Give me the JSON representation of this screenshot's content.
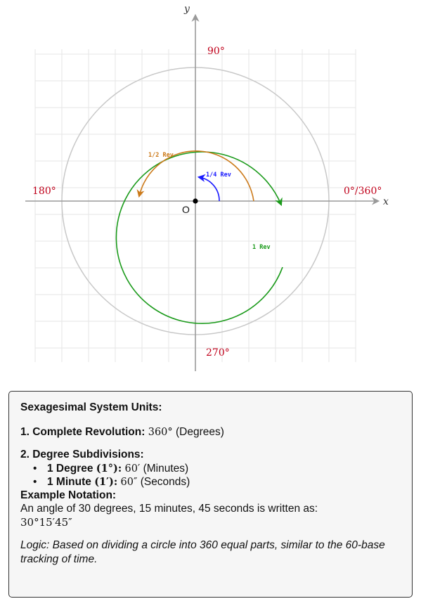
{
  "diagram": {
    "axis_x_label": "x",
    "axis_y_label": "y",
    "origin_label": "O",
    "angle_labels": {
      "deg0": "0°/360°",
      "deg90": "90°",
      "deg180": "180°",
      "deg270": "270°"
    },
    "arc_labels": {
      "quarter": "1/4 Rev",
      "half": "1/2 Rev",
      "full": "1 Rev"
    },
    "colors": {
      "degree_label": "#c0001a",
      "quarter_arc": "#1a1aff",
      "half_arc": "#cc7a1a",
      "full_arc": "#1a9a1a",
      "outer_circle": "#c8c8c8",
      "grid": "#e6e6e6",
      "axes": "#9a9a9a"
    }
  },
  "info": {
    "title": "Sexagesimal System Units:",
    "item1_label": "1. Complete Revolution:",
    "item1_value": "360°",
    "item1_unit": "(Degrees)",
    "item2_label": "2. Degree Subdivisions:",
    "bullet1_label": "1 Degree",
    "bullet1_symbol": "(1°):",
    "bullet1_value": "60′",
    "bullet1_unit": "(Minutes)",
    "bullet2_label": "1 Minute",
    "bullet2_symbol": "(1′):",
    "bullet2_value": "60″",
    "bullet2_unit": "(Seconds)",
    "example_title": "Example Notation:",
    "example_text": "An angle of 30 degrees, 15 minutes, 45 seconds is written as:",
    "example_notation": "30°15′45″",
    "logic_text": "Logic: Based on dividing a circle into 360 equal parts, similar to the 60-base tracking of time."
  }
}
